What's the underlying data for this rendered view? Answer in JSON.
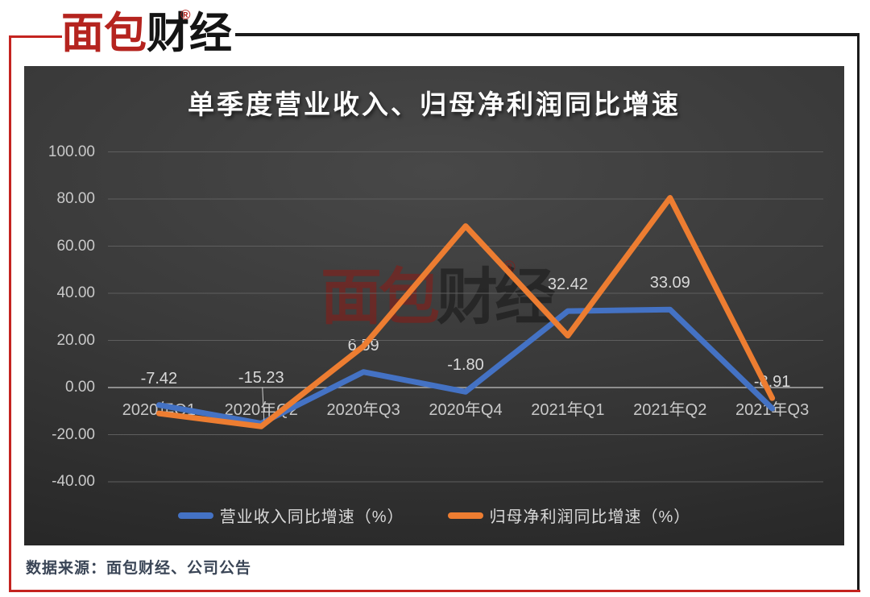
{
  "brand": {
    "logo_part1": "面包",
    "logo_part2": "财经",
    "registered_mark": "®"
  },
  "watermark": {
    "part1": "面包",
    "part2": "财经",
    "registered_mark": "®"
  },
  "footer": {
    "source": "数据来源：面包财经、公司公告"
  },
  "colors": {
    "frame_red": "#c42420",
    "frame_black": "#1a1a1a",
    "logo_red": "#b5241f",
    "logo_black": "#141414",
    "revenue_line": "#4472C4",
    "profit_line": "#ED7D31",
    "chart_bg_center": "#484848",
    "chart_bg_edge": "#262626",
    "tick_label": "#c9c9c9",
    "data_label": "#d9d9d9",
    "gridline": "#5e5e5e",
    "zero_line": "#ababab",
    "leader_line": "#cccccc",
    "footer_text": "#3a4556"
  },
  "chart_data": {
    "type": "line",
    "title": "单季度营业收入、归母净利润同比增速",
    "categories": [
      "2020年Q1",
      "2020年Q2",
      "2020年Q3",
      "2020年Q4",
      "2021年Q1",
      "2021年Q2",
      "2021年Q3"
    ],
    "series": [
      {
        "name": "营业收入同比增速（%）",
        "color_key": "revenue_line",
        "values": [
          -7.42,
          -15.23,
          6.59,
          -1.8,
          32.42,
          33.09,
          -8.91
        ],
        "show_labels": true,
        "label_format": "0.00"
      },
      {
        "name": "归母净利润同比增速（%）",
        "color_key": "profit_line",
        "values": [
          -11,
          -16.5,
          17.5,
          68.5,
          22,
          80.5,
          -4.5
        ],
        "values_estimated": true,
        "show_labels": false
      }
    ],
    "y_axis": {
      "ticks": [
        "100.00",
        "80.00",
        "60.00",
        "40.00",
        "20.00",
        "0.00",
        "-20.00",
        "-40.00"
      ],
      "tick_values": [
        100,
        80,
        60,
        40,
        20,
        0,
        -20,
        -40
      ],
      "ylim": [
        -40,
        100
      ]
    },
    "grid": true,
    "legend_position": "bottom"
  }
}
